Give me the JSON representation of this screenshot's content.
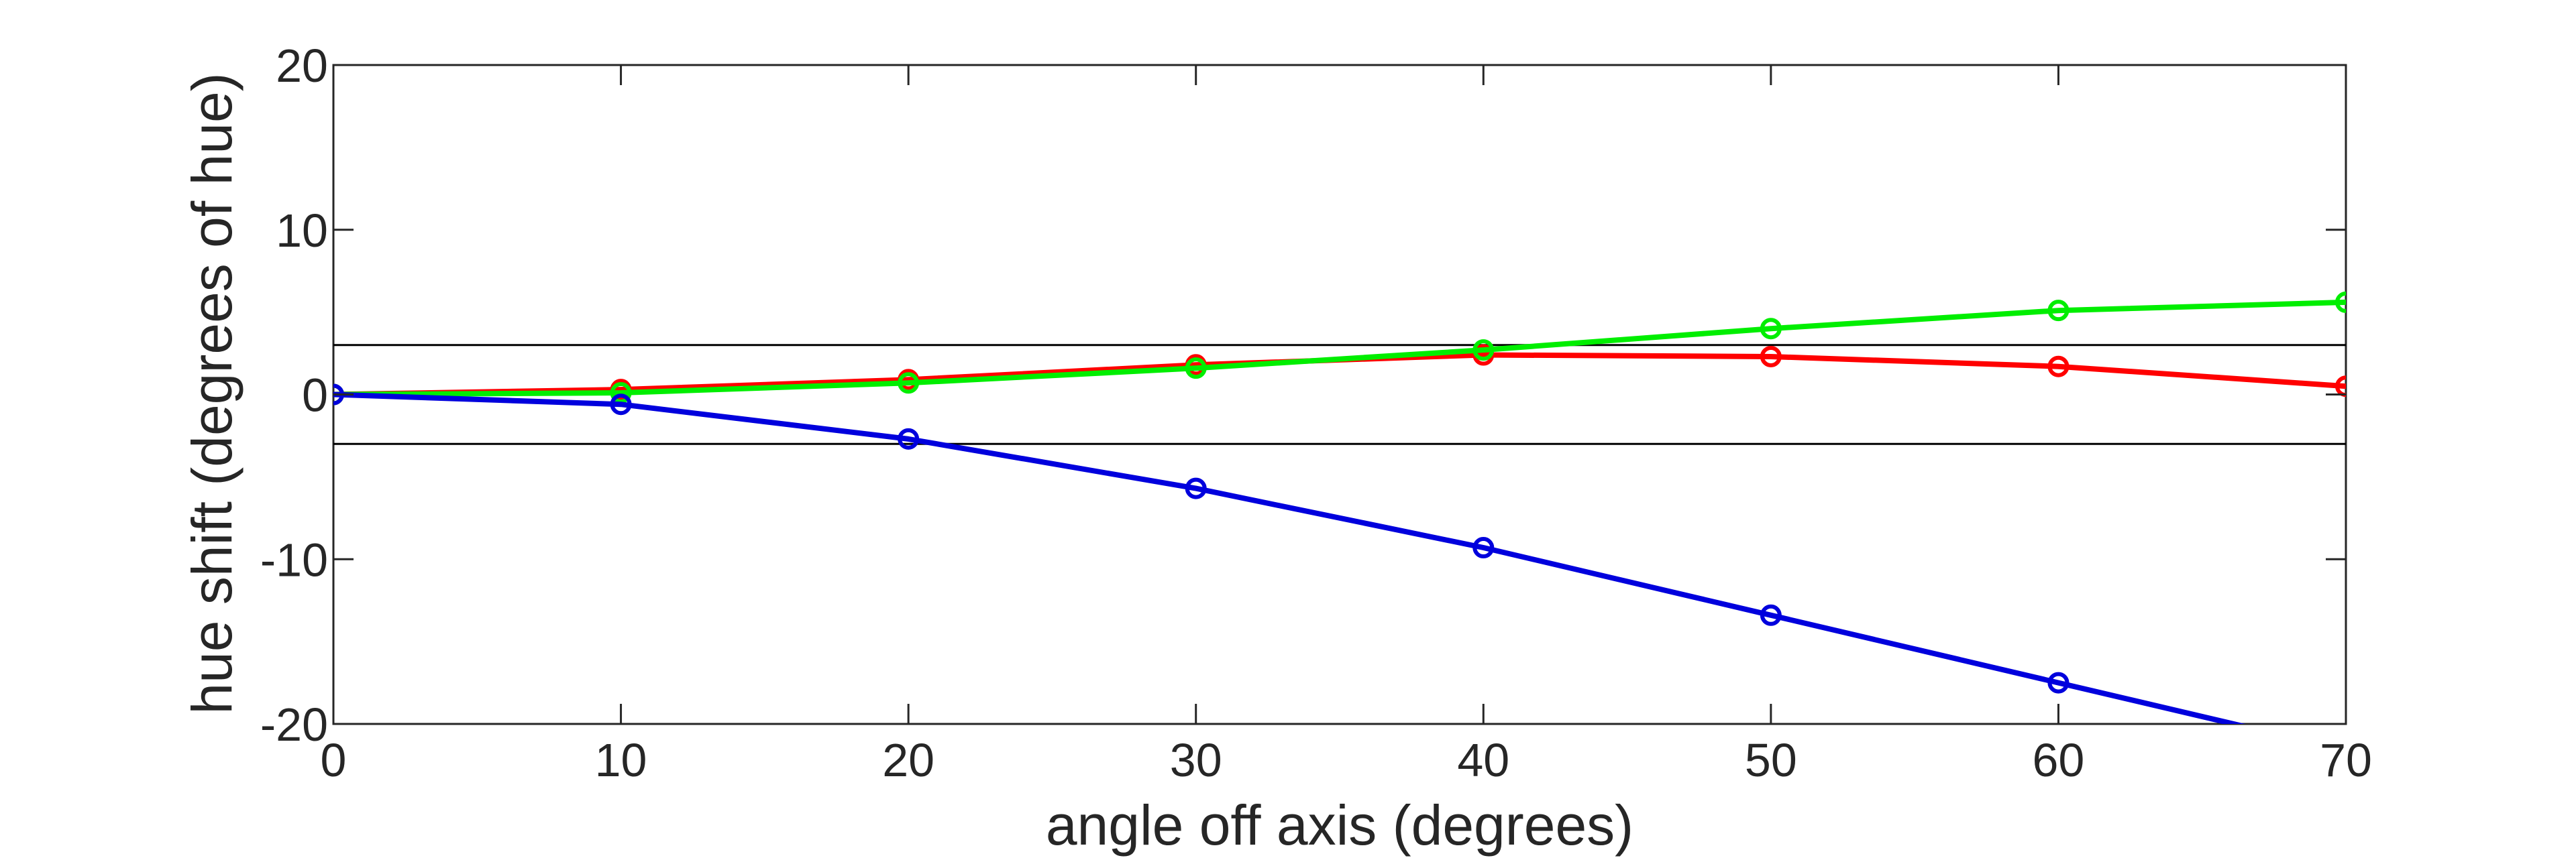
{
  "chart_data": {
    "type": "line",
    "title": "",
    "xlabel": "angle off axis (degrees)",
    "ylabel": "hue shift (degrees of hue)",
    "xlim": [
      0,
      70
    ],
    "ylim": [
      -20,
      20
    ],
    "xticks": [
      0,
      10,
      20,
      30,
      40,
      50,
      60,
      70
    ],
    "yticks": [
      -20,
      -10,
      0,
      10,
      20
    ],
    "grid": false,
    "box": true,
    "reference_lines": [
      3,
      -3
    ],
    "series": [
      {
        "color": "#ff0000",
        "x": [
          0,
          10,
          20,
          30,
          40,
          50,
          60,
          70
        ],
        "y": [
          0,
          0.3,
          0.9,
          1.8,
          2.4,
          2.3,
          1.7,
          0.5
        ]
      },
      {
        "color": "#00ee00",
        "x": [
          0,
          10,
          20,
          30,
          40,
          50,
          60,
          70
        ],
        "y": [
          0,
          0.1,
          0.7,
          1.6,
          2.7,
          4.0,
          5.1,
          5.6
        ]
      },
      {
        "color": "#0000dd",
        "x": [
          0,
          10,
          20,
          30,
          40,
          50,
          60,
          70
        ],
        "y": [
          0,
          -0.6,
          -2.7,
          -5.7,
          -9.3,
          -13.4,
          -17.5,
          -21.6
        ]
      }
    ]
  }
}
